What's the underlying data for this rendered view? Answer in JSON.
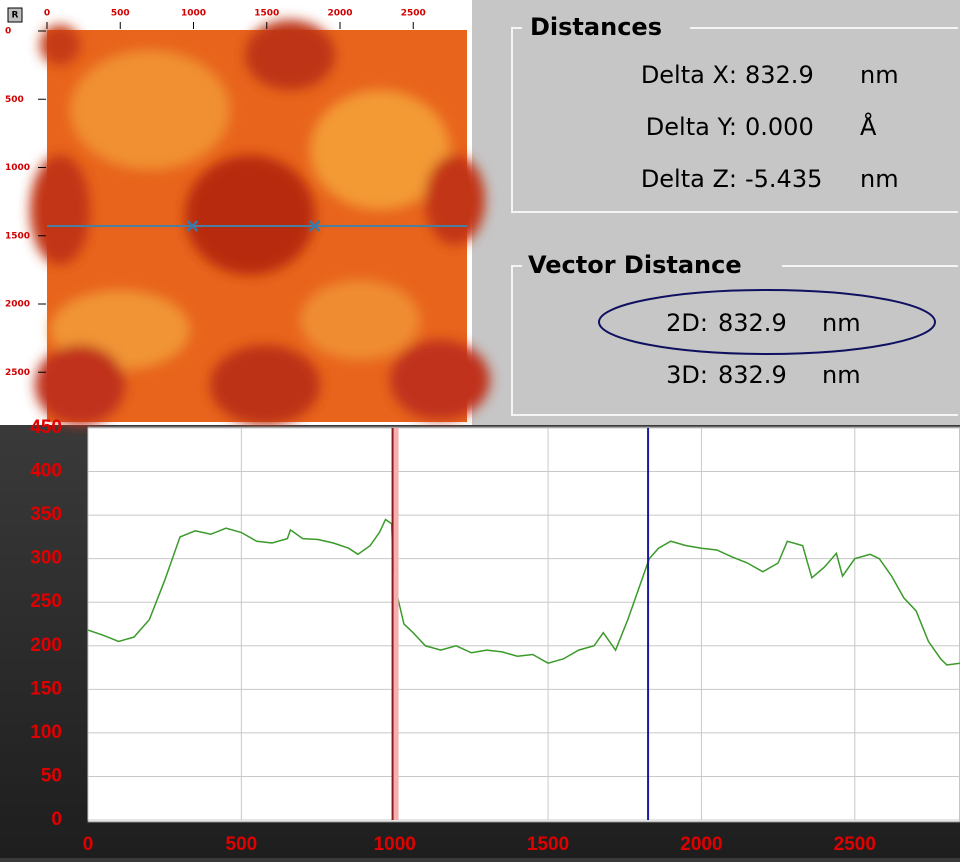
{
  "toolbar": {
    "button": "R"
  },
  "image": {
    "xticks": [
      0,
      500,
      1000,
      1500,
      2000,
      2500
    ],
    "yticks": [
      0,
      500,
      1000,
      1500,
      2000,
      2500
    ]
  },
  "distances": {
    "title": "Distances",
    "rows": [
      {
        "label": "Delta X:",
        "value": "832.9",
        "unit": "nm"
      },
      {
        "label": "Delta Y:",
        "value": "0.000",
        "unit": "Å"
      },
      {
        "label": "Delta Z:",
        "value": "-5.435",
        "unit": "nm"
      }
    ]
  },
  "vector_distance": {
    "title": "Vector Distance",
    "rows": [
      {
        "label": "2D:",
        "value": "832.9",
        "unit": "nm"
      },
      {
        "label": "3D:",
        "value": "832.9",
        "unit": "nm"
      }
    ]
  },
  "chart_data": {
    "type": "line",
    "x": [
      0,
      50,
      100,
      150,
      200,
      250,
      300,
      350,
      400,
      450,
      500,
      550,
      600,
      650,
      660,
      700,
      750,
      800,
      850,
      880,
      920,
      950,
      970,
      990,
      995,
      1010,
      1030,
      1060,
      1100,
      1150,
      1200,
      1250,
      1300,
      1350,
      1400,
      1450,
      1500,
      1550,
      1600,
      1650,
      1680,
      1720,
      1760,
      1800,
      1830,
      1860,
      1900,
      1950,
      2000,
      2050,
      2100,
      2150,
      2200,
      2250,
      2280,
      2330,
      2360,
      2400,
      2440,
      2460,
      2500,
      2550,
      2580,
      2620,
      2660,
      2700,
      2740,
      2780,
      2800,
      2843
    ],
    "series": [
      {
        "color": "#3a9a2a",
        "values": [
          218,
          212,
          205,
          210,
          230,
          275,
          325,
          332,
          328,
          335,
          330,
          320,
          318,
          323,
          333,
          323,
          322,
          318,
          312,
          305,
          315,
          330,
          345,
          340,
          295,
          255,
          225,
          215,
          200,
          195,
          200,
          192,
          195,
          193,
          188,
          190,
          180,
          185,
          195,
          200,
          215,
          195,
          230,
          270,
          300,
          312,
          320,
          315,
          312,
          310,
          302,
          295,
          285,
          295,
          320,
          315,
          278,
          290,
          306,
          280,
          300,
          305,
          300,
          280,
          255,
          240,
          205,
          185,
          178,
          180
        ]
      }
    ],
    "xlim": [
      0,
      2843
    ],
    "ylim": [
      0,
      450
    ],
    "xticks": [
      0,
      500,
      1000,
      1500,
      2000,
      2500
    ],
    "yticks": [
      0,
      50,
      100,
      150,
      200,
      250,
      300,
      350,
      400,
      450
    ],
    "grid": true,
    "cursors": [
      {
        "x": 993,
        "color": "#8b1a1a"
      },
      {
        "x": 1826,
        "color": "#1a1a9b"
      }
    ]
  }
}
